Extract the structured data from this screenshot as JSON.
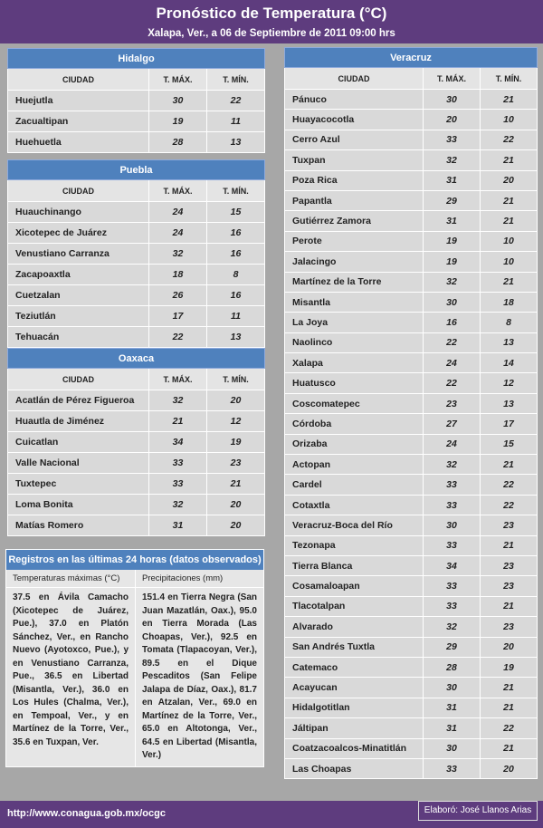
{
  "header": {
    "title": "Pronóstico de Temperatura (°C)",
    "subtitle": "Xalapa, Ver., a 06 de Septiembre de 2011 09:00 hrs"
  },
  "regions": [
    {
      "name": "Hidalgo",
      "columns": [
        "CIUDAD",
        "T. MÁX.",
        "T. MÍN."
      ],
      "rows": [
        [
          "Huejutla",
          30,
          22
        ],
        [
          "Zacualtipan",
          19,
          11
        ],
        [
          "Huehuetla",
          28,
          13
        ]
      ]
    },
    {
      "name": "Puebla",
      "columns": [
        "CIUDAD",
        "T. MÁX.",
        "T. MÍN."
      ],
      "rows": [
        [
          "Huauchinango",
          24,
          15
        ],
        [
          "Xicotepec de Juárez",
          24,
          16
        ],
        [
          "Venustiano Carranza",
          32,
          16
        ],
        [
          "Zacapoaxtla",
          18,
          8
        ],
        [
          "Cuetzalan",
          26,
          16
        ],
        [
          "Teziutlán",
          17,
          11
        ],
        [
          "Tehuacán",
          22,
          13
        ]
      ]
    },
    {
      "name": "Oaxaca",
      "columns": [
        "CIUDAD",
        "T. MÁX.",
        "T. MÍN."
      ],
      "rows": [
        [
          "Acatlán de Pérez Figueroa",
          32,
          20
        ],
        [
          "Huautla de Jiménez",
          21,
          12
        ],
        [
          "Cuicatlan",
          34,
          19
        ],
        [
          "Valle Nacional",
          33,
          23
        ],
        [
          "Tuxtepec",
          33,
          21
        ],
        [
          "Loma Bonita",
          32,
          20
        ],
        [
          "Matías Romero",
          31,
          20
        ]
      ]
    },
    {
      "name": "Veracruz",
      "columns": [
        "CIUDAD",
        "T. MÁX.",
        "T. MÍN."
      ],
      "rows": [
        [
          "Pánuco",
          30,
          21
        ],
        [
          "Huayacocotla",
          20,
          10
        ],
        [
          "Cerro Azul",
          33,
          22
        ],
        [
          "Tuxpan",
          32,
          21
        ],
        [
          "Poza Rica",
          31,
          20
        ],
        [
          "Papantla",
          29,
          21
        ],
        [
          "Gutiérrez Zamora",
          31,
          21
        ],
        [
          "Perote",
          19,
          10
        ],
        [
          "Jalacingo",
          19,
          10
        ],
        [
          "Martínez de la Torre",
          32,
          21
        ],
        [
          "Misantla",
          30,
          18
        ],
        [
          "La Joya",
          16,
          8
        ],
        [
          "Naolinco",
          22,
          13
        ],
        [
          "Xalapa",
          24,
          14
        ],
        [
          "Huatusco",
          22,
          12
        ],
        [
          "Coscomatepec",
          23,
          13
        ],
        [
          "Córdoba",
          27,
          17
        ],
        [
          "Orizaba",
          24,
          15
        ],
        [
          "Actopan",
          32,
          21
        ],
        [
          "Cardel",
          33,
          22
        ],
        [
          "Cotaxtla",
          33,
          22
        ],
        [
          "Veracruz-Boca del Río",
          30,
          23
        ],
        [
          "Tezonapa",
          33,
          21
        ],
        [
          "Tierra Blanca",
          34,
          23
        ],
        [
          "Cosamaloapan",
          33,
          23
        ],
        [
          "Tlacotalpan",
          33,
          21
        ],
        [
          "Alvarado",
          32,
          23
        ],
        [
          "San Andrés Tuxtla",
          29,
          20
        ],
        [
          "Catemaco",
          28,
          19
        ],
        [
          "Acayucan",
          30,
          21
        ],
        [
          "Hidalgotitlan",
          31,
          21
        ],
        [
          "Jáltipan",
          31,
          22
        ],
        [
          "Coatzacoalcos-Minatitlán",
          30,
          21
        ],
        [
          "Las Choapas",
          33,
          20
        ]
      ]
    }
  ],
  "observed": {
    "title": "Registros en las últimas 24 horas (datos observados)",
    "columns": [
      "Temperaturas máximas (°C)",
      "Precipitaciones (mm)"
    ],
    "texts": [
      "37.5 en Ávila Camacho (Xicotepec de Juárez, Pue.), 37.0 en Platón Sánchez, Ver., en Rancho Nuevo (Ayotoxco, Pue.), y en Venustiano Carranza, Pue., 36.5 en Libertad (Misantla, Ver.), 36.0 en Los Hules (Chalma, Ver.), en Tempoal, Ver., y en Martínez de la Torre, Ver., 35.6 en Tuxpan, Ver.",
      "151.4 en Tierra Negra (San Juan Mazatlán, Oax.), 95.0 en Tierra Morada (Las Choapas, Ver.), 92.5 en Tomata (Tlapacoyan, Ver.), 89.5 en el Dique Pescaditos (San Felipe Jalapa de Díaz, Oax.), 81.7 en Atzalan, Ver., 69.0 en Martínez de la Torre, Ver., 65.0 en Altotonga, Ver., 64.5 en Libertad (Misantla, Ver.)"
    ]
  },
  "footer": {
    "url": "http://www.conagua.gob.mx/ocgc",
    "author": "Elaboró: José Llanos Arias"
  }
}
